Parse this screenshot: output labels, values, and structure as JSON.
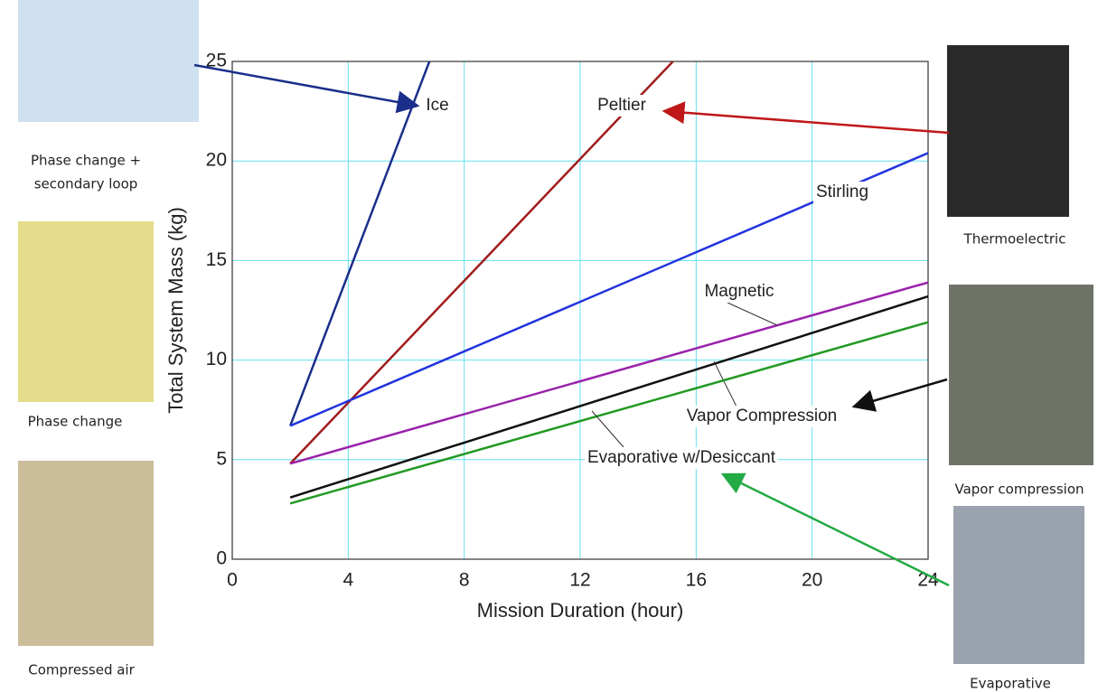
{
  "chart_data": {
    "type": "line",
    "xlabel": "Mission Duration (hour)",
    "ylabel": "Total System Mass (kg)",
    "xlim": [
      0,
      24
    ],
    "ylim": [
      0,
      25
    ],
    "xticks": [
      0,
      4,
      8,
      12,
      16,
      20,
      24
    ],
    "yticks": [
      0,
      5,
      10,
      15,
      20,
      25
    ],
    "grid": true,
    "series": [
      {
        "name": "Ice",
        "color": "#1a2e8a",
        "x": [
          2,
          6.8
        ],
        "values": [
          6.7,
          25
        ]
      },
      {
        "name": "Peltier",
        "color": "#a01c1c",
        "x": [
          2,
          15.2
        ],
        "values": [
          4.8,
          25
        ]
      },
      {
        "name": "Stirling",
        "color": "#2233dd",
        "x": [
          2,
          24
        ],
        "values": [
          6.7,
          20.4
        ]
      },
      {
        "name": "Magnetic",
        "color": "#9922aa",
        "x": [
          2,
          24
        ],
        "values": [
          4.8,
          13.9
        ]
      },
      {
        "name": "Vapor Compression",
        "color": "#111111",
        "x": [
          2,
          24
        ],
        "values": [
          3.1,
          13.2
        ]
      },
      {
        "name": "Evaporative w/Desiccant",
        "color": "#229922",
        "x": [
          2,
          24
        ],
        "values": [
          2.8,
          11.9
        ]
      }
    ]
  },
  "images": [
    {
      "caption": [
        "Phase change +",
        "secondary loop"
      ]
    },
    {
      "caption": [
        "Phase change"
      ]
    },
    {
      "caption": [
        "Compressed air"
      ]
    },
    {
      "caption": [
        "Thermoelectric"
      ]
    },
    {
      "caption": [
        "Vapor compression"
      ]
    },
    {
      "caption": [
        "Evaporative"
      ]
    }
  ]
}
